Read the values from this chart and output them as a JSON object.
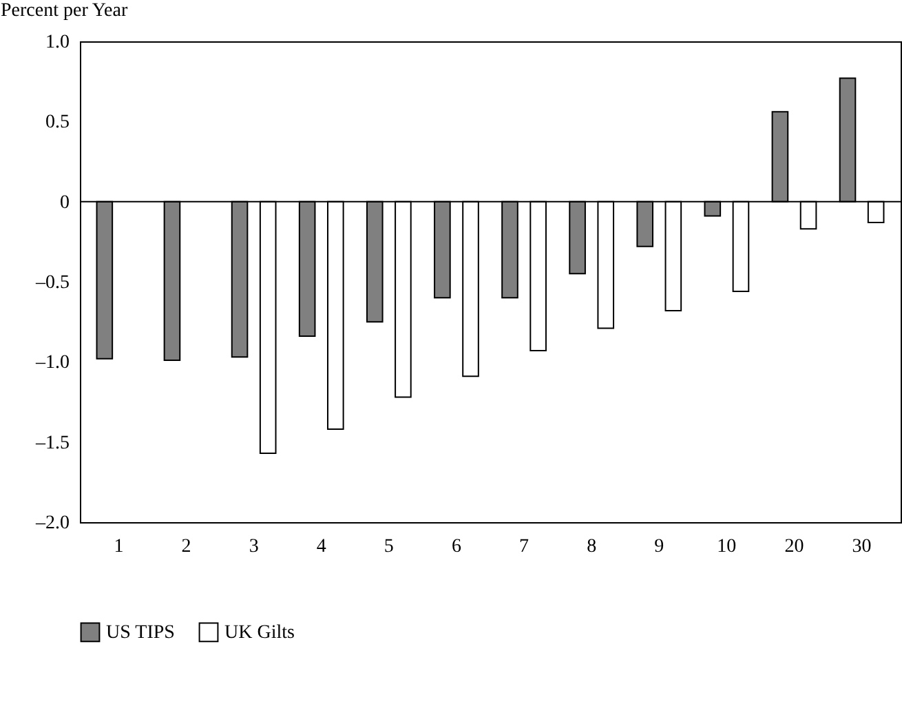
{
  "chart_data": {
    "type": "bar",
    "ylabel": "Percent per Year",
    "categories": [
      "1",
      "2",
      "3",
      "4",
      "5",
      "6",
      "7",
      "8",
      "9",
      "10",
      "20",
      "30"
    ],
    "series": [
      {
        "name": "US TIPS",
        "color": "#808080",
        "values": [
          -0.98,
          -0.99,
          -0.97,
          -0.84,
          -0.75,
          -0.6,
          -0.6,
          -0.45,
          -0.28,
          -0.09,
          0.56,
          0.77
        ]
      },
      {
        "name": "UK Gilts",
        "color": "#ffffff",
        "values": [
          null,
          null,
          -1.57,
          -1.42,
          -1.22,
          -1.09,
          -0.93,
          -0.79,
          -0.68,
          -0.56,
          -0.17,
          -0.13
        ]
      }
    ],
    "ylim": [
      -2.0,
      1.0
    ],
    "yticks": [
      {
        "value": -2,
        "label": "–2.0"
      },
      {
        "value": -1.5,
        "label": "–1.5"
      },
      {
        "value": -1,
        "label": "–1.0"
      },
      {
        "value": -0.5,
        "label": "–0.5"
      },
      0,
      0.5,
      {
        "value": 1,
        "label": "1.0"
      }
    ],
    "ref_lines": [
      {
        "axis": "y",
        "value": 0
      }
    ],
    "grid": false,
    "legend": "bottom"
  }
}
